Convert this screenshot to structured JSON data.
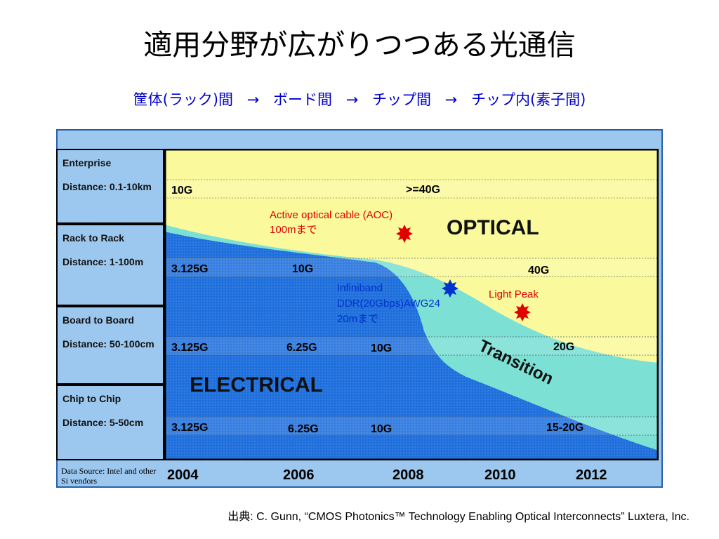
{
  "title": "適用分野が広がりつつある光通信",
  "subtitle": {
    "steps": [
      "筐体(ラック)間",
      "ボード間",
      "チップ間",
      "チップ内(素子間)"
    ],
    "arrow": "→"
  },
  "tiers": [
    {
      "name": "Enterprise",
      "distance": "Distance: 0.1-10km",
      "speeds": [
        "10G",
        ">=40G"
      ]
    },
    {
      "name": "Rack to Rack",
      "distance": "Distance: 1-100m",
      "speeds": [
        "3.125G",
        "10G",
        "40G"
      ]
    },
    {
      "name": "Board to Board",
      "distance": "Distance: 50-100cm",
      "speeds": [
        "3.125G",
        "6.25G",
        "10G",
        "20G"
      ]
    },
    {
      "name": "Chip to Chip",
      "distance": "Distance: 5-50cm",
      "speeds": [
        "3.125G",
        "6.25G",
        "10G",
        "15-20G"
      ]
    }
  ],
  "regions": {
    "optical": "OPTICAL",
    "electrical": "ELECTRICAL",
    "transition": "Transition"
  },
  "annotations": {
    "aoc_line1": "Active optical cable (AOC)",
    "aoc_line2": "100mまで",
    "ib_line1": "Infiniband",
    "ib_line2": "DDR(20Gbps)AWG24",
    "ib_line3": "20mまで",
    "light_peak": "Light Peak"
  },
  "years": [
    "2004",
    "2006",
    "2008",
    "2010",
    "2012"
  ],
  "source_note": "Data Source: Intel and other Si vendors",
  "citation": "出典: C. Gunn, “CMOS Photonics™ Technology Enabling Optical Interconnects” Luxtera, Inc.",
  "colors": {
    "optical": "#fafa9c",
    "transition": "#7ce0d4",
    "electrical": "#1f6fdc",
    "panel": "#9cc7ee",
    "star_red": "#e00000",
    "star_blue": "#0033cc",
    "subtitle": "#0000cc"
  }
}
